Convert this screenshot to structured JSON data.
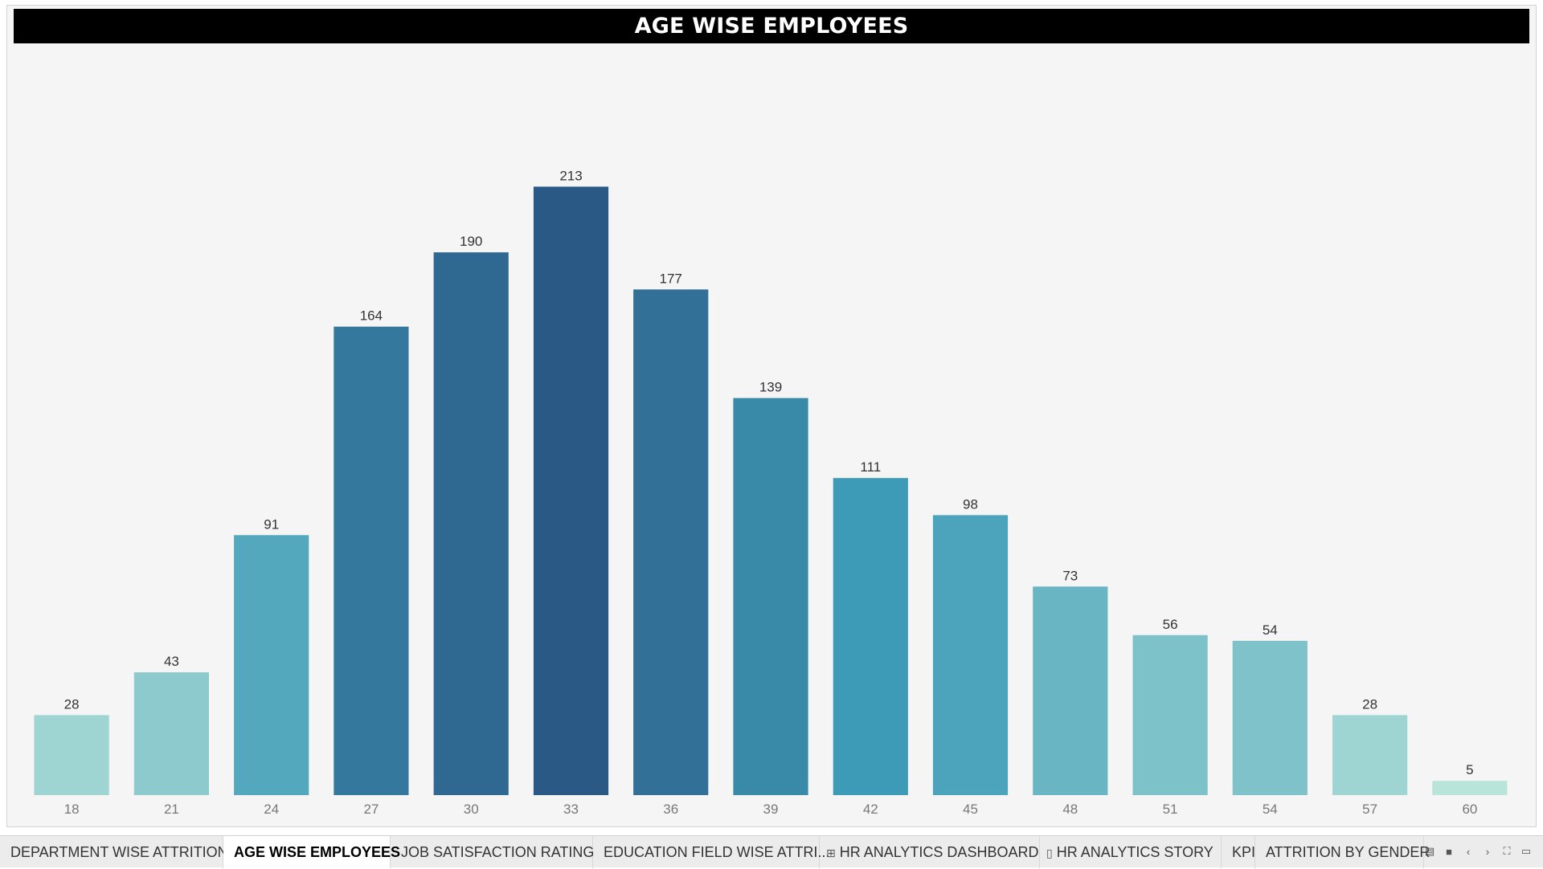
{
  "chart_data": {
    "type": "bar",
    "title": "AGE WISE EMPLOYEES",
    "xlabel": "",
    "ylabel": "",
    "categories": [
      "18",
      "21",
      "24",
      "27",
      "30",
      "33",
      "36",
      "39",
      "42",
      "45",
      "48",
      "51",
      "54",
      "57",
      "60"
    ],
    "values": [
      28,
      43,
      91,
      164,
      190,
      213,
      177,
      139,
      111,
      98,
      73,
      56,
      54,
      28,
      5
    ],
    "ylim": [
      0,
      246
    ],
    "grid": false,
    "legend": "none",
    "data_labels": true,
    "color_scale": [
      "#b9e4d9",
      "#2b5985"
    ]
  },
  "tabs": [
    {
      "label": "DEPARTMENT WISE ATTRITION",
      "glyph": "",
      "active": false
    },
    {
      "label": "AGE WISE EMPLOYEES",
      "glyph": "",
      "active": true
    },
    {
      "label": "JOB SATISFACTION RATING",
      "glyph": "",
      "active": false
    },
    {
      "label": "EDUCATION FIELD WISE ATTRI...",
      "glyph": "",
      "active": false
    },
    {
      "label": "HR ANALYTICS DASHBOARD",
      "glyph": "⊞",
      "active": false
    },
    {
      "label": "HR ANALYTICS STORY",
      "glyph": "▯",
      "active": false
    },
    {
      "label": "KPI",
      "glyph": "",
      "active": false
    },
    {
      "label": "ATTRITION BY GENDER",
      "glyph": "",
      "active": false
    }
  ],
  "nav_icons": [
    "sheet-sorter-icon",
    "filmstrip-icon",
    "prev-icon",
    "next-icon",
    "fullscreen-icon",
    "present-icon"
  ]
}
